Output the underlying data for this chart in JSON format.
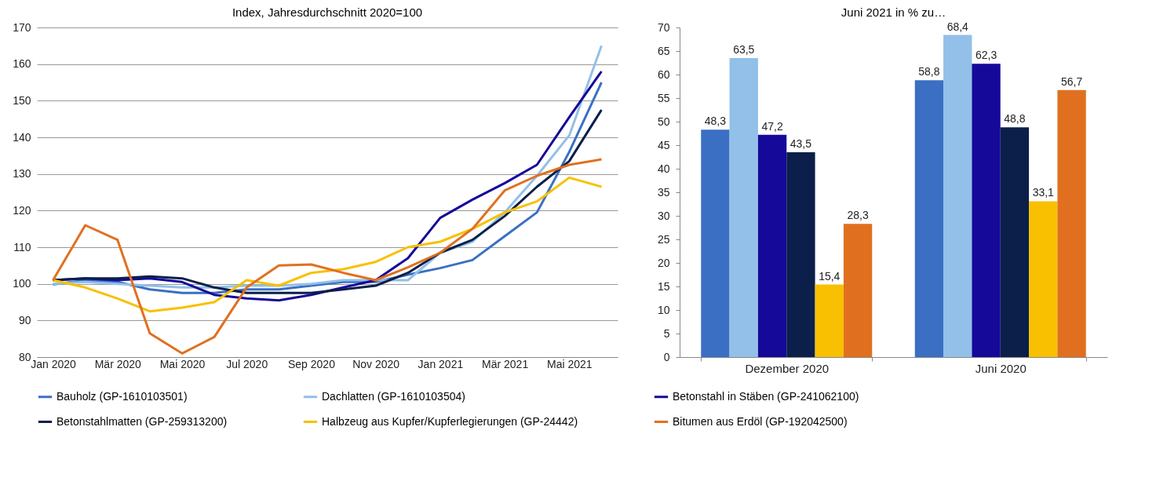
{
  "chart_data": [
    {
      "type": "line",
      "title": "Index,  Jahresdurchschnitt  2020=100",
      "categories": [
        "Jan 2020",
        null,
        "Mär 2020",
        null,
        "Mai 2020",
        null,
        "Jul 2020",
        null,
        "Sep 2020",
        null,
        "Nov 2020",
        null,
        "Jan 2021",
        null,
        "Mär 2021",
        null,
        "Mai 2021",
        null
      ],
      "ylim": [
        80,
        170
      ],
      "yticks": [
        80,
        90,
        100,
        110,
        120,
        130,
        140,
        150,
        160,
        170
      ],
      "grid": "y",
      "legend": "bottom",
      "series": [
        {
          "name": "Bauholz (GP-1610103501)",
          "color": "#3a6fc4",
          "values": [
            99.8,
            101,
            100.5,
            98.5,
            97.5,
            97.5,
            98.5,
            98.5,
            99.5,
            100.5,
            100.5,
            102.5,
            104.3,
            106.5,
            113,
            119.5,
            136,
            155
          ]
        },
        {
          "name": "Dachlatten (GP-1610103504)",
          "color": "#92c0e8",
          "values": [
            100,
            100.5,
            100,
            99.5,
            99,
            99,
            99.5,
            99.5,
            100,
            101,
            101,
            101,
            108.5,
            111.5,
            119.5,
            129.5,
            140.5,
            165
          ]
        },
        {
          "name": "Betonstahl in Stäben (GP-241062100)",
          "color": "#15099a",
          "values": [
            101,
            101.5,
            101,
            101.5,
            100.5,
            97,
            96,
            95.5,
            97,
            99,
            101,
            107,
            118,
            123,
            127.5,
            132.5,
            145.5,
            158
          ]
        },
        {
          "name": "Betonstahlmatten (GP-259313200)",
          "color": "#0b1f4a",
          "values": [
            101,
            101.5,
            101.5,
            102,
            101.5,
            99,
            97.5,
            97.5,
            97.5,
            98.5,
            99.5,
            103,
            108.5,
            112,
            118.5,
            126.5,
            133.5,
            147.5
          ]
        },
        {
          "name": "Halbzeug aus Kupfer/Kupferlegierungen (GP-24442)",
          "color": "#f8c000",
          "values": [
            101,
            99,
            96,
            92.5,
            93.5,
            95,
            101,
            99.5,
            103,
            104,
            106,
            110,
            111.5,
            115,
            119.5,
            122.5,
            129,
            126.5
          ]
        },
        {
          "name": "Bitumen aus Erdöl (GP-192042500)",
          "color": "#e07020",
          "values": [
            101,
            116,
            112,
            86.5,
            81,
            85.5,
            99,
            105,
            105.3,
            103,
            101,
            104.5,
            108.5,
            115,
            125.5,
            129.5,
            132.5,
            134
          ]
        }
      ]
    },
    {
      "type": "bar",
      "title": "Juni 2021 in % zu…",
      "categories": [
        "Dezember 2020",
        "Juni 2020"
      ],
      "ylim": [
        0,
        70
      ],
      "yticks": [
        0,
        5,
        10,
        15,
        20,
        25,
        30,
        35,
        40,
        45,
        50,
        55,
        60,
        65,
        70
      ],
      "series": [
        {
          "name": "Bauholz (GP-1610103501)",
          "color": "#3a6fc4",
          "values": [
            48.3,
            58.8
          ],
          "value_labels": [
            "48,3",
            "58,8"
          ]
        },
        {
          "name": "Dachlatten (GP-1610103504)",
          "color": "#92c0e8",
          "values": [
            63.5,
            68.4
          ],
          "value_labels": [
            "63,5",
            "68,4"
          ]
        },
        {
          "name": "Betonstahl in Stäben (GP-241062100)",
          "color": "#15099a",
          "values": [
            47.2,
            62.3
          ],
          "value_labels": [
            "47,2",
            "62,3"
          ]
        },
        {
          "name": "Betonstahlmatten (GP-259313200)",
          "color": "#0b1f4a",
          "values": [
            43.5,
            48.8
          ],
          "value_labels": [
            "43,5",
            "48,8"
          ]
        },
        {
          "name": "Halbzeug aus Kupfer/Kupferlegierungen (GP-24442)",
          "color": "#f8c000",
          "values": [
            15.4,
            33.1
          ],
          "value_labels": [
            "15,4",
            "33,1"
          ]
        },
        {
          "name": "Bitumen aus Erdöl (GP-192042500)",
          "color": "#e87010",
          "values": [
            28.3,
            56.7
          ],
          "value_labels": [
            "28,3",
            "56,7"
          ]
        }
      ]
    }
  ]
}
